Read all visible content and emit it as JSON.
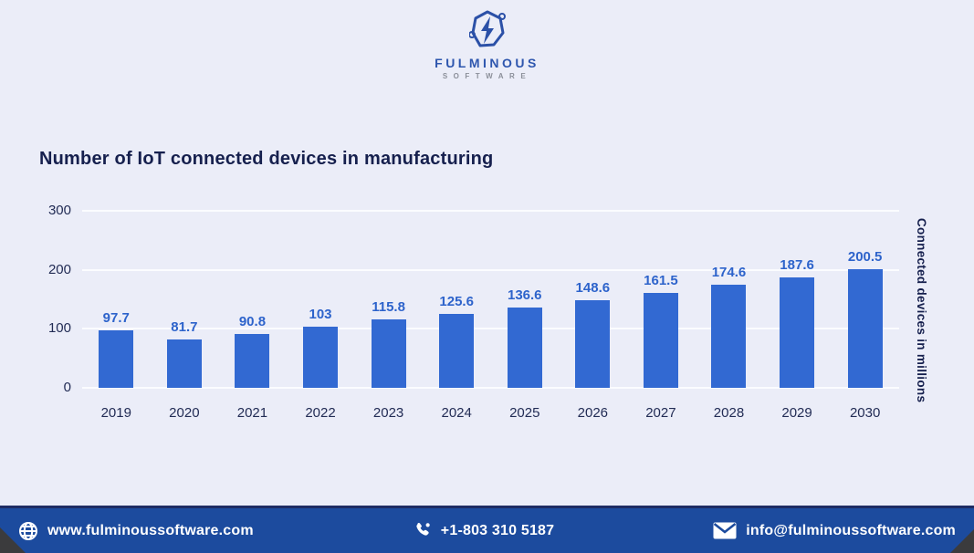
{
  "logo": {
    "brand": "FULMINOUS",
    "brand_sub": "SOFTWARE"
  },
  "chart_data": {
    "type": "bar",
    "title": "Number of IoT connected devices in manufacturing",
    "categories": [
      "2019",
      "2020",
      "2021",
      "2022",
      "2023",
      "2024",
      "2025",
      "2026",
      "2027",
      "2028",
      "2029",
      "2030"
    ],
    "values": [
      97.7,
      81.7,
      90.8,
      103,
      115.8,
      125.6,
      136.6,
      148.6,
      161.5,
      174.6,
      187.6,
      200.5
    ],
    "xlabel": "",
    "ylabel": "Connected devices in millions",
    "yticks": [
      0,
      100,
      200,
      300
    ],
    "ylim": [
      0,
      300
    ],
    "grid": true,
    "legend": "none",
    "bar_color": "#3269d2",
    "value_label_color": "#2d63cb"
  },
  "footer": {
    "website": "www.fulminoussoftware.com",
    "phone": "+1-803 310 5187",
    "email": "info@fulminoussoftware.com"
  },
  "colors": {
    "background": "#ebedf8",
    "title_text": "#16204e",
    "axis_text": "#222c55",
    "gridline": "#fbfcff",
    "footer_background": "#1c4b9e",
    "footer_border": "#1e2c63",
    "footer_text": "#ffffff",
    "logo_blue": "#2e56ae",
    "logo_sub_gray": "#8b8f99",
    "corner_wedge": "#3b3b3d"
  }
}
